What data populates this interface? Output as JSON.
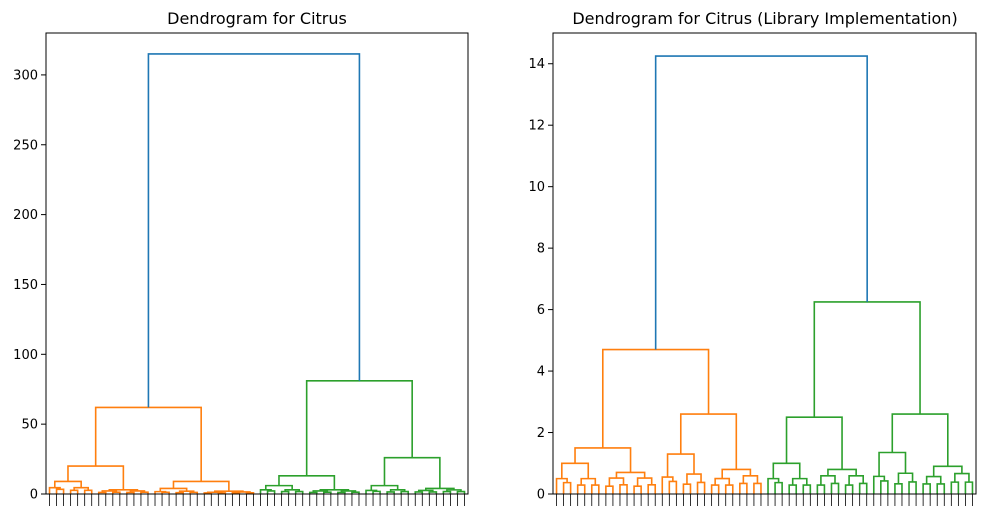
{
  "chart_data": [
    {
      "type": "dendrogram",
      "title": "Dendrogram for Citrus",
      "xlabel": "",
      "ylabel": "",
      "ylim": [
        0,
        330
      ],
      "yticks": [
        0,
        50,
        100,
        150,
        200,
        250,
        300
      ],
      "grid": false,
      "colors": {
        "root": "#1f77b4",
        "cluster_1": "#ff7f0e",
        "cluster_2": "#2ca02c"
      },
      "root_height": 315,
      "clusters": [
        {
          "color_key": "cluster_1",
          "height": 62,
          "sub_heights": [
            20,
            9,
            3
          ],
          "secondary_heights": [
            9,
            4,
            2
          ]
        },
        {
          "color_key": "cluster_2",
          "height": 81,
          "sub_heights": [
            13,
            6,
            3
          ],
          "secondary_heights": [
            26,
            6,
            4
          ]
        }
      ]
    },
    {
      "type": "dendrogram",
      "title": "Dendrogram for Citrus (Library Implementation)",
      "xlabel": "",
      "ylabel": "",
      "ylim": [
        0,
        15
      ],
      "yticks": [
        0,
        2,
        4,
        6,
        8,
        10,
        12,
        14
      ],
      "grid": false,
      "colors": {
        "root": "#1f77b4",
        "cluster_1": "#ff7f0e",
        "cluster_2": "#2ca02c"
      },
      "root_height": 14.25,
      "clusters": [
        {
          "color_key": "cluster_1",
          "height": 4.7,
          "sub_heights": [
            1.5,
            1.0,
            0.7
          ],
          "secondary_heights": [
            2.6,
            1.3,
            0.8
          ]
        },
        {
          "color_key": "cluster_2",
          "height": 6.25,
          "sub_heights": [
            2.5,
            1.0,
            0.8
          ],
          "secondary_heights": [
            2.6,
            1.35,
            0.9
          ]
        }
      ]
    }
  ]
}
